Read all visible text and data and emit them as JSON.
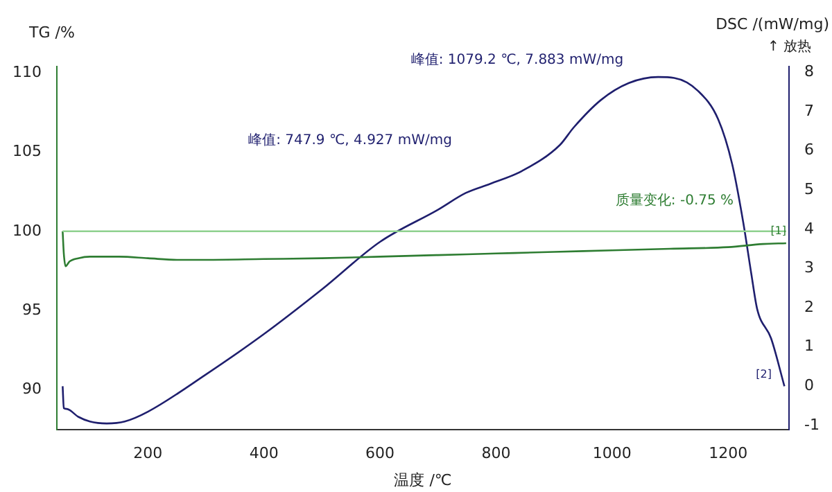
{
  "chart_data": {
    "type": "line",
    "xlabel": "温度 /℃",
    "ylabel": "TG /%",
    "y2label": "DSC /(mW/mg)",
    "xlim": [
      43,
      1305
    ],
    "xticks": [
      200,
      400,
      600,
      800,
      1000,
      1200
    ],
    "ylim": [
      87.5,
      110.4
    ],
    "yticks": [
      90,
      95,
      100,
      105,
      110
    ],
    "y2lim": [
      -1.1,
      8.15
    ],
    "y2ticks": [
      -1,
      0,
      1,
      2,
      3,
      4,
      5,
      6,
      7,
      8
    ],
    "grid": false,
    "legend": false,
    "marker": "none",
    "line_style": "solid",
    "series": [
      {
        "color": "#2e7d32",
        "axis": "y",
        "x": [
          53,
          55,
          58,
          65,
          80,
          100,
          150,
          200,
          250,
          300,
          400,
          500,
          600,
          700,
          800,
          900,
          1000,
          1100,
          1200,
          1260,
          1300
        ],
        "values": [
          100,
          98.6,
          97.8,
          98.1,
          98.3,
          98.4,
          98.4,
          98.3,
          98.2,
          98.2,
          98.25,
          98.3,
          98.4,
          98.5,
          98.6,
          98.7,
          98.8,
          98.9,
          99.0,
          99.2,
          99.25
        ]
      },
      {
        "color": "#1f1f6e",
        "axis": "y2",
        "x": [
          53,
          55,
          60,
          80,
          100,
          129,
          160,
          200,
          300,
          400,
          500,
          600,
          700,
          747.9,
          790,
          845,
          910,
          934,
          981,
          1029,
          1079.2,
          1107,
          1148,
          1183,
          1207,
          1226,
          1240,
          1250,
          1274,
          1297
        ],
        "values": [
          0,
          -0.56,
          -0.58,
          -0.78,
          -0.9,
          -0.95,
          -0.9,
          -0.65,
          0.3,
          1.33,
          2.47,
          3.68,
          4.5,
          4.927,
          5.16,
          5.49,
          6.15,
          6.6,
          7.3,
          7.73,
          7.883,
          7.86,
          7.53,
          6.8,
          5.66,
          4.18,
          2.86,
          1.97,
          1.22,
          0
        ]
      }
    ],
    "ref_lines": [
      {
        "axis": "y",
        "value": 100,
        "color": "#8fd18f"
      }
    ],
    "annotations": [
      "峰值: 1079.2 ℃, 7.883 mW/mg",
      "峰值: 747.9 ℃, 4.927 mW/mg",
      "质量变化: -0.75 %",
      "↑ 放热",
      "[1]",
      "[2]"
    ]
  }
}
